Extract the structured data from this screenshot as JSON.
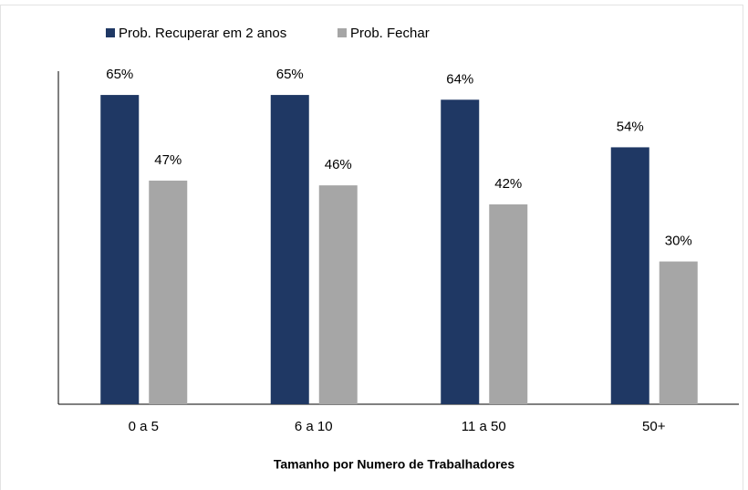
{
  "chart_data": {
    "type": "bar",
    "xlabel": "Tamanho por Numero de Trabalhadores",
    "categories": [
      "0 a 5",
      "6 a 10",
      "11 a 50",
      "50+"
    ],
    "series": [
      {
        "name": "Prob. Recuperar em 2 anos",
        "color": "#1f3864",
        "values": [
          65,
          65,
          64,
          54
        ],
        "value_labels": [
          "65%",
          "65%",
          "64%",
          "54%"
        ]
      },
      {
        "name": "Prob. Fechar",
        "color": "#a6a6a6",
        "values": [
          47,
          46,
          42,
          30
        ],
        "value_labels": [
          "47%",
          "46%",
          "42%",
          "30%"
        ]
      }
    ],
    "ylim": [
      0,
      70
    ]
  }
}
